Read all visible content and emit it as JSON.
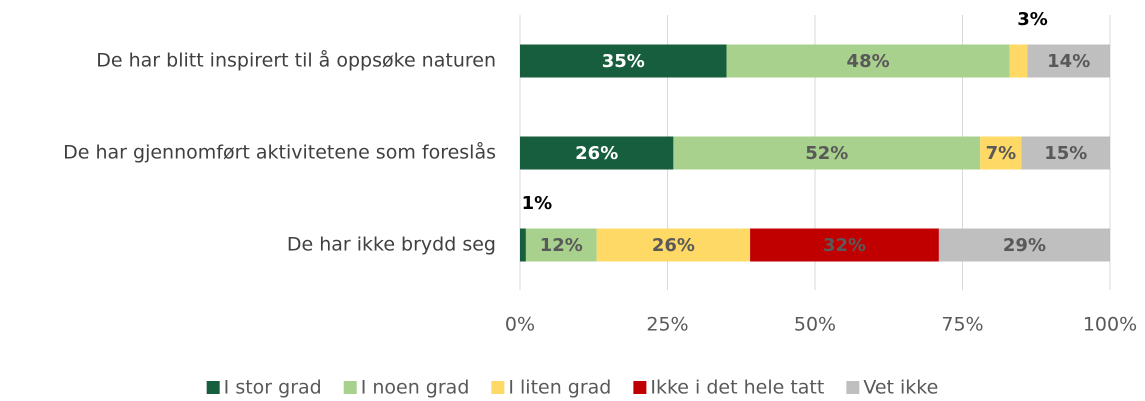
{
  "chart_data": {
    "type": "stacked-bar-horizontal",
    "categories": [
      "De har blitt inspirert til å oppsøke naturen",
      "De har gjennomført aktivitetene som foreslås",
      "De har ikke brydd seg"
    ],
    "series": [
      {
        "name": "I stor grad",
        "color": "#175e3f",
        "values": [
          35,
          26,
          1
        ],
        "value_labels": [
          "35%",
          "26%",
          "1%"
        ]
      },
      {
        "name": "I noen grad",
        "color": "#a9d18e",
        "values": [
          48,
          52,
          12
        ],
        "value_labels": [
          "48%",
          "52%",
          "12%"
        ]
      },
      {
        "name": "I liten grad",
        "color": "#ffd966",
        "values": [
          3,
          7,
          26
        ],
        "value_labels": [
          "3%",
          "7%",
          "26%"
        ]
      },
      {
        "name": "Ikke i det hele tatt",
        "color": "#c00000",
        "values": [
          null,
          null,
          32
        ],
        "value_labels": [
          null,
          null,
          "32%"
        ]
      },
      {
        "name": "Vet ikke",
        "color": "#bfbfbf",
        "values": [
          14,
          15,
          29
        ],
        "value_labels": [
          "14%",
          "15%",
          "29%"
        ]
      }
    ],
    "xlim": [
      0,
      100
    ],
    "xticks": [
      {
        "value": 0,
        "label": "0%"
      },
      {
        "value": 25,
        "label": "25%"
      },
      {
        "value": 50,
        "label": "50%"
      },
      {
        "value": 75,
        "label": "75%"
      },
      {
        "value": 100,
        "label": "100%"
      }
    ],
    "grid": true,
    "legend": "bottom"
  }
}
